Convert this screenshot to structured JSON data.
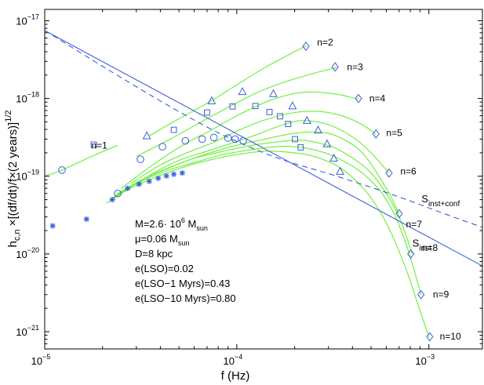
{
  "chart_data": {
    "type": "line",
    "title": "",
    "xlabel": "f (Hz)",
    "ylabel": {
      "lead": "h",
      "sub": "c,n",
      "tail": " ×[(df/dt)/f×(2 years)]",
      "sup": "1/2"
    },
    "x_scale": "log",
    "y_scale": "log",
    "xlim": [
      1e-05,
      0.0019
    ],
    "ylim": [
      6e-22,
      1.4e-17
    ],
    "x_ticks": [
      {
        "value": 1e-05,
        "mantissa": "10",
        "exponent": "−5"
      },
      {
        "value": 0.0001,
        "mantissa": "10",
        "exponent": "−4"
      },
      {
        "value": 0.001,
        "mantissa": "10",
        "exponent": "−3"
      }
    ],
    "y_ticks": [
      {
        "value": 1e-21,
        "mantissa": "10",
        "exponent": "−21"
      },
      {
        "value": 1e-20,
        "mantissa": "10",
        "exponent": "−20"
      },
      {
        "value": 1e-19,
        "mantissa": "10",
        "exponent": "−19"
      },
      {
        "value": 1e-18,
        "mantissa": "10",
        "exponent": "−18"
      },
      {
        "value": 1e-17,
        "mantissa": "10",
        "exponent": "−17"
      }
    ],
    "series": [
      {
        "name": "n=1",
        "x": [
          1e-05,
          1.23e-05,
          1.8e-05,
          2.4e-05
        ],
        "y": [
          1e-19,
          1.2e-19,
          1.85e-19,
          2.5e-19
        ]
      },
      {
        "name": "n=2",
        "x": [
          3.5e-05,
          5e-05,
          7.3e-05,
          0.0001,
          0.00014,
          0.0002,
          0.00023
        ],
        "y": [
          3.3e-19,
          5.5e-19,
          9.2e-19,
          1.5e-18,
          2.5e-18,
          4e-18,
          4.8e-18
        ]
      },
      {
        "name": "n=3",
        "x": [
          3e-05,
          4.5e-05,
          7e-05,
          0.0001,
          0.00013,
          0.00018,
          0.00025,
          0.00033
        ],
        "y": [
          1.8e-19,
          3e-19,
          5.5e-19,
          8.8e-19,
          1.22e-18,
          1.65e-18,
          2.1e-18,
          2.5e-18
        ]
      },
      {
        "name": "n=4",
        "x": [
          2.5e-05,
          3.8e-05,
          5.5e-05,
          7.2e-05,
          0.0001,
          0.00015,
          0.00022,
          0.00032,
          0.00043
        ],
        "y": [
          7e-20,
          1.5e-19,
          2.7e-19,
          3.8e-19,
          6e-19,
          9.5e-19,
          1.2e-18,
          1.15e-18,
          9.8e-19
        ]
      },
      {
        "name": "n=5",
        "x": [
          2.8e-05,
          4e-05,
          5.5e-05,
          7.5e-05,
          0.0001,
          0.00014,
          0.0002,
          0.00027,
          0.00036,
          0.00045,
          0.00053
        ],
        "y": [
          8e-20,
          1.4e-19,
          2e-19,
          2.7e-19,
          3.8e-19,
          5.3e-19,
          6.6e-19,
          6.8e-19,
          5.9e-19,
          4.6e-19,
          3.5e-19
        ]
      },
      {
        "name": "n=6",
        "x": [
          2.6e-05,
          3.7e-05,
          5e-05,
          7e-05,
          0.0001,
          0.00013,
          0.00017,
          0.00022,
          0.0003,
          0.0004,
          0.0005,
          0.00062
        ],
        "y": [
          6.5e-20,
          1.1e-19,
          1.6e-19,
          2.1e-19,
          2.8e-19,
          3.5e-19,
          4.5e-19,
          5.2e-19,
          4.6e-19,
          3.2e-19,
          2e-19,
          1.1e-19
        ]
      },
      {
        "name": "n=7",
        "x": [
          2.4e-05,
          3.5e-05,
          5e-05,
          7e-05,
          0.0001,
          0.00014,
          0.00019,
          0.00025,
          0.00033,
          0.00045,
          0.0006,
          0.0007
        ],
        "y": [
          6e-20,
          1e-19,
          1.45e-19,
          1.95e-19,
          2.5e-19,
          3e-19,
          3.5e-19,
          3.7e-19,
          3.3e-19,
          2e-19,
          7e-20,
          3.3e-20
        ]
      },
      {
        "name": "n=8",
        "x": [
          2.3e-05,
          3.2e-05,
          4.5e-05,
          6e-05,
          8.5e-05,
          0.00012,
          0.00017,
          0.00022,
          0.00028,
          0.00035,
          0.0005,
          0.00068,
          0.00082
        ],
        "y": [
          5.5e-20,
          9e-20,
          1.3e-19,
          1.7e-19,
          2.1e-19,
          2.5e-19,
          2.8e-19,
          2.9e-19,
          2.6e-19,
          2.1e-19,
          1.1e-19,
          3.5e-20,
          1e-20
        ]
      },
      {
        "name": "n=9",
        "x": [
          2.2e-05,
          3e-05,
          4.2e-05,
          6e-05,
          8.5e-05,
          0.00012,
          0.00016,
          0.0002,
          0.00025,
          0.00032,
          0.00045,
          0.0006,
          0.00075,
          0.00091
        ],
        "y": [
          5e-20,
          8e-20,
          1.15e-19,
          1.5e-19,
          1.9e-19,
          2.2e-19,
          2.4e-19,
          2.4e-19,
          2.2e-19,
          1.8e-19,
          1.1e-19,
          5e-20,
          1.5e-20,
          3e-21
        ]
      },
      {
        "name": "n=10",
        "x": [
          2.1e-05,
          2.8e-05,
          3.9e-05,
          5.5e-05,
          7.5e-05,
          0.0001,
          0.00014,
          0.00018,
          0.00023,
          0.00028,
          0.00036,
          0.00048,
          0.0006,
          0.00075,
          0.00088,
          0.001
        ],
        "y": [
          4.5e-20,
          7e-20,
          1e-19,
          1.35e-19,
          1.65e-19,
          1.9e-19,
          2.1e-19,
          2.05e-19,
          1.9e-19,
          1.65e-19,
          1.2e-19,
          6e-20,
          2.5e-20,
          7e-21,
          2.2e-21,
          8.5e-22
        ]
      }
    ],
    "curve_labels": [
      {
        "text": "n=1",
        "x": 1.75e-05,
        "y": 2.5e-19
      },
      {
        "text": "n=2",
        "x": 0.000262,
        "y": 5.3e-18
      },
      {
        "text": "n=3",
        "x": 0.000375,
        "y": 2.55e-18
      },
      {
        "text": "n=4",
        "x": 0.00049,
        "y": 1e-18
      },
      {
        "text": "n=5",
        "x": 0.0006,
        "y": 3.6e-19
      },
      {
        "text": "n=6",
        "x": 0.00071,
        "y": 1.15e-19
      },
      {
        "text": "n=7",
        "x": 0.00076,
        "y": 2.4e-20
      },
      {
        "text": "n=8",
        "x": 0.00092,
        "y": 1.2e-20
      },
      {
        "text": "n=9",
        "x": 0.00105,
        "y": 3e-21
      },
      {
        "text": "n=10",
        "x": 0.00114,
        "y": 8.7e-22
      }
    ],
    "markers": {
      "circle": [
        [
          1.23e-05,
          1.2e-19
        ],
        [
          2.4e-05,
          6e-20
        ],
        [
          3.15e-05,
          1.65e-19
        ],
        [
          4.1e-05,
          2.4e-19
        ],
        [
          5.4e-05,
          2.85e-19
        ],
        [
          6.6e-05,
          3e-19
        ],
        [
          7.6e-05,
          3.15e-19
        ],
        [
          9e-05,
          3.1e-19
        ],
        [
          9.8e-05,
          3e-19
        ],
        [
          0.000108,
          2.85e-19
        ]
      ],
      "square": [
        [
          1.8e-05,
          2.55e-19
        ],
        [
          4.7e-05,
          3.95e-19
        ],
        [
          7e-05,
          6.6e-19
        ],
        [
          9.5e-05,
          7.9e-19
        ],
        [
          0.000125,
          8e-19
        ],
        [
          0.000148,
          6.7e-19
        ],
        [
          0.000168,
          5.9e-19
        ],
        [
          0.000185,
          4.7e-19
        ],
        [
          0.000201,
          3e-19
        ],
        [
          0.000215,
          2.35e-19
        ]
      ],
      "triangle": [
        [
          3.4e-05,
          3.3e-19
        ],
        [
          7.4e-05,
          9.3e-19
        ],
        [
          0.000107,
          1.22e-18
        ],
        [
          0.000155,
          1.15e-18
        ],
        [
          0.000195,
          8e-19
        ],
        [
          0.000232,
          5.2e-19
        ],
        [
          0.000265,
          3.9e-19
        ],
        [
          0.000295,
          2.6e-19
        ],
        [
          0.00032,
          1.7e-19
        ],
        [
          0.000345,
          1.15e-19
        ]
      ],
      "diamond": [
        [
          0.000229,
          4.7e-18
        ],
        [
          0.000325,
          2.55e-18
        ],
        [
          0.00043,
          1e-18
        ],
        [
          0.00053,
          3.5e-19
        ],
        [
          0.00062,
          1.1e-19
        ],
        [
          0.0007,
          3.3e-20
        ],
        [
          0.000805,
          1e-20
        ],
        [
          0.00091,
          3e-21
        ],
        [
          0.00101,
          8.6e-22
        ]
      ],
      "star": [
        [
          1.1e-05,
          2.3e-20
        ],
        [
          1.65e-05,
          2.8e-20
        ],
        [
          2.25e-05,
          5e-20
        ],
        [
          2.7e-05,
          7e-20
        ],
        [
          3.1e-05,
          7.9e-20
        ],
        [
          3.5e-05,
          8.6e-20
        ],
        [
          3.9e-05,
          9.4e-20
        ],
        [
          4.3e-05,
          1.01e-19
        ],
        [
          4.7e-05,
          1.06e-19
        ],
        [
          5.2e-05,
          1.1e-19
        ]
      ]
    },
    "noise_curves": [
      {
        "name": "S_inst",
        "style": "solid",
        "x": [
          1e-05,
          0.0019
        ],
        "y": [
          7.5e-18,
          7e-21
        ]
      },
      {
        "name": "S_inst+conf",
        "style": "dashed",
        "x": [
          1e-05,
          2e-05,
          4e-05,
          7e-05,
          0.0001,
          0.00015,
          0.0002,
          0.0003,
          0.0005,
          0.0008,
          0.0012,
          0.0019
        ],
        "y": [
          7.5e-18,
          2.6e-18,
          9.3e-19,
          4.3e-19,
          2.8e-19,
          1.85e-19,
          1.45e-19,
          1.08e-19,
          7.2e-20,
          4.8e-20,
          3.3e-20,
          2.2e-20
        ]
      }
    ],
    "noise_labels": [
      {
        "main": "S",
        "sub": "inst+conf",
        "x": 0.000915,
        "y": 4.6e-20
      },
      {
        "main": "S",
        "sub": "inst",
        "x": 0.00082,
        "y": 1.25e-20
      }
    ],
    "annotations": [
      {
        "parts": [
          {
            "t": "M=2.6· 10"
          },
          {
            "t": "6",
            "sup": true
          },
          {
            "t": " M"
          },
          {
            "t": "sun",
            "sub": true
          }
        ]
      },
      {
        "parts": [
          {
            "t": "μ=0.06 M"
          },
          {
            "t": "sun",
            "sub": true
          }
        ]
      },
      {
        "parts": [
          {
            "t": "D=8 kpc"
          }
        ]
      },
      {
        "parts": [
          {
            "t": "e(LSO)=0.02"
          }
        ]
      },
      {
        "parts": [
          {
            "t": "e(LSO−1 Myrs)=0.43"
          }
        ]
      },
      {
        "parts": [
          {
            "t": "e(LSO−10 Myrs)=0.80"
          }
        ]
      }
    ],
    "grid": false,
    "colors": {
      "harmonic_curves": "#66ee33",
      "noise": "#3a5fd9",
      "markers": "#3a5fd9",
      "axes": "#000000"
    }
  }
}
